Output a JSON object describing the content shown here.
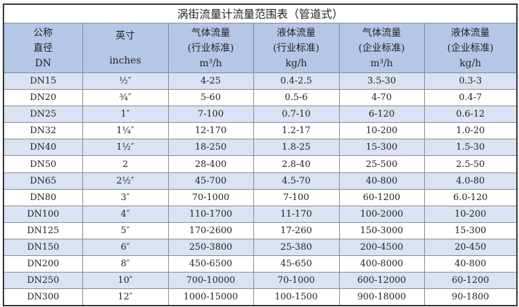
{
  "title": "涡街流量计流量范围表（管道式）",
  "header": {
    "dn": [
      "公称",
      "直径",
      "DN"
    ],
    "inch": [
      "英寸",
      "inches"
    ],
    "cols": [
      {
        "l1": "气体流量",
        "l2": "(行业标准)",
        "unit": "m³/h"
      },
      {
        "l1": "液体流量",
        "l2": "(行业标准)",
        "unit": "kg/h"
      },
      {
        "l1": "气体流量",
        "l2": "(企业标准)",
        "unit": "m³/h"
      },
      {
        "l1": "液体流量",
        "l2": "(企业标准)",
        "unit": "kg/h"
      }
    ]
  },
  "colors": {
    "header_bg": "#b4c7e7",
    "stripe_bg": "#dae3f3"
  },
  "rows": [
    [
      "DN15",
      "½″",
      "4-25",
      "0.4-2.5",
      "3.5-30",
      "0.3-3"
    ],
    [
      "DN20",
      "¾″",
      "5-60",
      "0.5-6",
      "4-70",
      "0.4-7"
    ],
    [
      "DN25",
      "1″",
      "7-100",
      "0.7-10",
      "6-120",
      "0.6-12"
    ],
    [
      "DN32",
      "1¼″",
      "12-170",
      "1.2-17",
      "10-200",
      "1.0-20"
    ],
    [
      "DN40",
      "1½″",
      "18-250",
      "1.8-25",
      "15-300",
      "1.5-30"
    ],
    [
      "DN50",
      "2",
      "28-400",
      "2.8-40",
      "25-500",
      "2.5-50"
    ],
    [
      "DN65",
      "2½″",
      "45-700",
      "4.5-70",
      "40-800",
      "4.0-80"
    ],
    [
      "DN80",
      "3″",
      "70-1000",
      "7-100",
      "60-1200",
      "6.0-120"
    ],
    [
      "DN100",
      "4″",
      "110-1700",
      "11-170",
      "100-2000",
      "10-200"
    ],
    [
      "DN125",
      "5″",
      "170-2600",
      "17-260",
      "150-3000",
      "15-300"
    ],
    [
      "DN150",
      "6″",
      "250-3800",
      "25-380",
      "200-4500",
      "20-450"
    ],
    [
      "DN200",
      "8″",
      "450-6500",
      "45-650",
      "400-8000",
      "40-800"
    ],
    [
      "DN250",
      "10″",
      "700-10000",
      "70-1000",
      "600-12000",
      "60-1200"
    ],
    [
      "DN300",
      "12″",
      "1000-15000",
      "100-1500",
      "900-18000",
      "90-1800"
    ]
  ]
}
